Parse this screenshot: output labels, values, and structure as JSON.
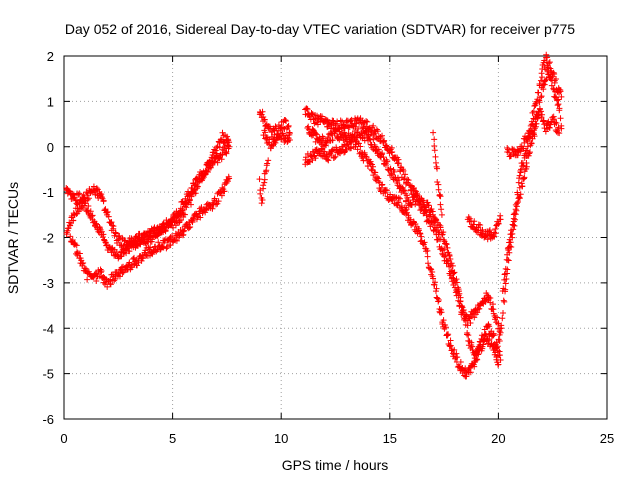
{
  "chart_data": {
    "type": "scatter",
    "title": "Day 052 of 2016, Sidereal Day-to-day VTEC variation (SDTVAR) for receiver p775",
    "xlabel": "GPS time / hours",
    "ylabel": "SDTVAR / TECUs",
    "xlim": [
      0,
      25
    ],
    "ylim": [
      -6,
      2
    ],
    "xticks": [
      "0",
      "5",
      "10",
      "15",
      "20",
      "25"
    ],
    "yticks": [
      "2",
      "1",
      "0",
      "-1",
      "-2",
      "-3",
      "-4",
      "-5",
      "-6"
    ],
    "grid": true,
    "marker": "+",
    "color": "#ff0000",
    "series": [
      {
        "name": "",
        "tracks": [
          [
            [
              0.1,
              -1.0
            ],
            [
              0.5,
              -1.15
            ],
            [
              1.0,
              -1.1
            ],
            [
              1.4,
              -0.95
            ],
            [
              1.7,
              -1.1
            ],
            [
              2.0,
              -1.5
            ],
            [
              2.4,
              -2.0
            ],
            [
              2.8,
              -2.15
            ],
            [
              3.3,
              -2.05
            ],
            [
              3.8,
              -1.95
            ],
            [
              4.3,
              -1.85
            ],
            [
              4.8,
              -1.75
            ],
            [
              5.3,
              -1.6
            ],
            [
              5.8,
              -1.2
            ],
            [
              6.2,
              -0.8
            ],
            [
              6.6,
              -0.4
            ],
            [
              7.0,
              -0.1
            ],
            [
              7.3,
              0.2
            ],
            [
              7.6,
              0.1
            ]
          ],
          [
            [
              0.1,
              -1.9
            ],
            [
              0.4,
              -1.55
            ],
            [
              0.7,
              -1.3
            ],
            [
              1.0,
              -1.3
            ],
            [
              1.3,
              -1.55
            ],
            [
              1.7,
              -1.9
            ],
            [
              2.1,
              -2.3
            ],
            [
              2.5,
              -2.4
            ],
            [
              3.0,
              -2.2
            ],
            [
              3.5,
              -2.1
            ],
            [
              4.0,
              -2.0
            ],
            [
              4.5,
              -1.8
            ],
            [
              5.0,
              -1.6
            ],
            [
              5.5,
              -1.25
            ],
            [
              6.0,
              -0.85
            ],
            [
              6.5,
              -0.5
            ],
            [
              7.0,
              -0.3
            ],
            [
              7.6,
              0.0
            ]
          ],
          [
            [
              0.3,
              -2.05
            ],
            [
              0.6,
              -2.3
            ],
            [
              1.0,
              -2.8
            ],
            [
              1.3,
              -2.9
            ],
            [
              1.7,
              -2.8
            ],
            [
              2.0,
              -3.0
            ],
            [
              2.4,
              -2.85
            ],
            [
              2.9,
              -2.65
            ],
            [
              3.4,
              -2.5
            ],
            [
              3.9,
              -2.3
            ],
            [
              4.4,
              -2.2
            ],
            [
              4.9,
              -2.1
            ],
            [
              5.4,
              -1.9
            ],
            [
              5.9,
              -1.65
            ],
            [
              6.4,
              -1.4
            ],
            [
              6.9,
              -1.25
            ],
            [
              7.3,
              -1.0
            ],
            [
              7.6,
              -0.7
            ]
          ]
        ]
      },
      {
        "name": "",
        "tracks": [
          [
            [
              9.0,
              0.8
            ],
            [
              9.3,
              0.5
            ],
            [
              9.6,
              0.3
            ],
            [
              9.9,
              0.4
            ],
            [
              10.2,
              0.5
            ],
            [
              10.4,
              0.3
            ]
          ],
          [
            [
              9.2,
              0.3
            ],
            [
              9.5,
              0.05
            ],
            [
              9.8,
              0.15
            ],
            [
              10.1,
              0.2
            ],
            [
              10.4,
              0.15
            ]
          ],
          [
            [
              9.0,
              -0.8
            ],
            [
              9.1,
              -1.2
            ],
            [
              9.2,
              -0.7
            ],
            [
              9.4,
              -0.3
            ]
          ]
        ]
      },
      {
        "name": "",
        "tracks": [
          [
            [
              11.1,
              0.8
            ],
            [
              11.5,
              0.6
            ],
            [
              12.0,
              0.55
            ],
            [
              12.5,
              0.45
            ],
            [
              13.0,
              0.5
            ],
            [
              13.5,
              0.55
            ],
            [
              14.0,
              0.45
            ],
            [
              14.5,
              0.25
            ],
            [
              15.0,
              -0.05
            ],
            [
              15.3,
              -0.25
            ],
            [
              15.6,
              -0.6
            ],
            [
              15.9,
              -0.85
            ],
            [
              16.2,
              -1.05
            ],
            [
              16.5,
              -1.4
            ],
            [
              16.8,
              -1.6
            ],
            [
              17.1,
              -1.85
            ],
            [
              17.4,
              -2.25
            ],
            [
              17.7,
              -2.6
            ],
            [
              18.0,
              -3.1
            ],
            [
              18.3,
              -3.6
            ],
            [
              18.6,
              -3.85
            ],
            [
              18.9,
              -3.65
            ],
            [
              19.2,
              -3.45
            ],
            [
              19.5,
              -3.3
            ],
            [
              19.8,
              -3.6
            ],
            [
              20.1,
              -4.1
            ]
          ],
          [
            [
              11.2,
              0.4
            ],
            [
              11.6,
              0.2
            ],
            [
              12.0,
              0.1
            ],
            [
              12.5,
              0.3
            ],
            [
              13.0,
              0.2
            ],
            [
              13.5,
              0.3
            ],
            [
              14.0,
              0.2
            ],
            [
              14.5,
              -0.1
            ],
            [
              15.0,
              -0.5
            ],
            [
              15.3,
              -0.7
            ],
            [
              15.6,
              -1.0
            ],
            [
              15.9,
              -1.25
            ],
            [
              16.2,
              -1.15
            ],
            [
              16.5,
              -1.2
            ],
            [
              16.8,
              -1.35
            ],
            [
              17.1,
              -1.6
            ],
            [
              17.4,
              -1.9
            ],
            [
              17.7,
              -2.3
            ],
            [
              18.0,
              -2.9
            ],
            [
              18.3,
              -3.5
            ],
            [
              18.6,
              -4.2
            ],
            [
              18.9,
              -4.6
            ],
            [
              19.2,
              -4.3
            ],
            [
              19.5,
              -4.0
            ],
            [
              19.8,
              -4.2
            ],
            [
              20.1,
              -4.7
            ]
          ],
          [
            [
              11.1,
              -0.3
            ],
            [
              11.4,
              -0.2
            ],
            [
              11.8,
              -0.1
            ],
            [
              12.2,
              -0.2
            ],
            [
              12.6,
              -0.1
            ],
            [
              13.0,
              0.0
            ],
            [
              13.4,
              0.1
            ],
            [
              13.8,
              -0.2
            ],
            [
              14.2,
              -0.5
            ],
            [
              14.6,
              -0.9
            ],
            [
              15.0,
              -1.1
            ],
            [
              15.4,
              -1.2
            ],
            [
              15.8,
              -1.5
            ],
            [
              16.2,
              -1.8
            ],
            [
              16.6,
              -2.2
            ],
            [
              17.0,
              -2.9
            ],
            [
              17.3,
              -3.6
            ],
            [
              17.6,
              -4.1
            ],
            [
              17.9,
              -4.5
            ],
            [
              18.2,
              -4.8
            ],
            [
              18.5,
              -5.0
            ],
            [
              18.8,
              -4.85
            ],
            [
              19.1,
              -4.5
            ],
            [
              19.4,
              -4.2
            ],
            [
              19.7,
              -4.4
            ],
            [
              20.0,
              -4.8
            ]
          ],
          [
            [
              17.0,
              0.3
            ],
            [
              17.1,
              -0.2
            ],
            [
              17.2,
              -0.7
            ],
            [
              17.3,
              -1.1
            ],
            [
              17.4,
              -1.5
            ]
          ]
        ]
      },
      {
        "name": "",
        "tracks": [
          [
            [
              18.6,
              -1.6
            ],
            [
              18.9,
              -1.75
            ],
            [
              19.2,
              -1.85
            ],
            [
              19.5,
              -1.95
            ],
            [
              19.8,
              -1.9
            ],
            [
              20.1,
              -1.6
            ]
          ],
          [
            [
              20.0,
              -4.4
            ],
            [
              20.2,
              -3.6
            ],
            [
              20.4,
              -2.8
            ],
            [
              20.6,
              -2.1
            ],
            [
              20.8,
              -1.5
            ],
            [
              21.0,
              -1.0
            ],
            [
              21.3,
              -0.4
            ],
            [
              21.6,
              0.2
            ],
            [
              21.8,
              0.7
            ],
            [
              22.0,
              1.2
            ],
            [
              22.2,
              1.6
            ],
            [
              22.4,
              1.5
            ],
            [
              22.6,
              1.15
            ],
            [
              22.8,
              0.9
            ],
            [
              22.9,
              0.4
            ]
          ],
          [
            [
              20.2,
              -3.2
            ],
            [
              20.4,
              -2.4
            ],
            [
              20.7,
              -1.6
            ],
            [
              21.0,
              -0.6
            ],
            [
              21.3,
              -0.1
            ],
            [
              21.5,
              0.5
            ],
            [
              21.8,
              1.1
            ],
            [
              22.0,
              1.6
            ],
            [
              22.2,
              1.95
            ],
            [
              22.5,
              1.6
            ],
            [
              22.7,
              1.3
            ],
            [
              22.9,
              1.1
            ]
          ],
          [
            [
              20.4,
              -0.1
            ],
            [
              20.7,
              -0.15
            ],
            [
              21.0,
              -0.05
            ],
            [
              21.3,
              0.2
            ],
            [
              21.6,
              0.4
            ],
            [
              21.9,
              0.8
            ],
            [
              22.2,
              0.4
            ],
            [
              22.5,
              0.6
            ],
            [
              22.8,
              0.3
            ]
          ]
        ]
      }
    ]
  }
}
